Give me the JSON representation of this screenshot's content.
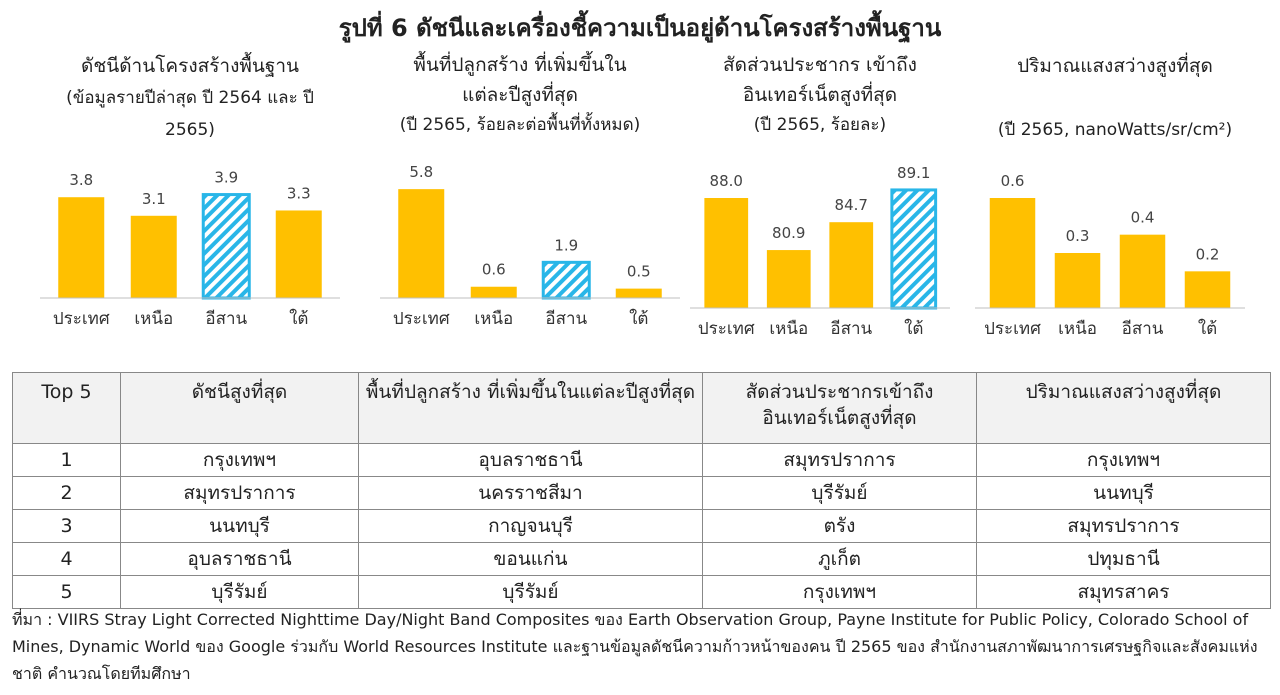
{
  "title": "รูปที่ 6 ดัชนีและเครื่องชี้ความเป็นอยู่ด้านโครงสร้างพื้นฐาน",
  "colors": {
    "solid": "#FFC000",
    "hatch": "#29B6E8",
    "axis": "#bfbfbf"
  },
  "chart_data": [
    {
      "type": "bar",
      "title": "ดัชนีด้านโครงสร้างพื้นฐาน",
      "subtitle": "(ข้อมูลรายปีล่าสุด ปี 2564 และ ปี 2565)",
      "categories": [
        "ประเทศ",
        "เหนือ",
        "อีสาน",
        "ใต้"
      ],
      "values": [
        3.8,
        3.1,
        3.9,
        3.3
      ],
      "labels": [
        "3.8",
        "3.1",
        "3.9",
        "3.3"
      ],
      "highlight_index": 2,
      "ylim": [
        0,
        4.6
      ]
    },
    {
      "type": "bar",
      "title": "พื้นที่ปลูกสร้าง ที่เพิ่มขึ้นในแต่ละปีสูงที่สุด",
      "subtitle": "(ปี 2565, ร้อยละต่อพื้นที่ทั้งหมด)",
      "categories": [
        "ประเทศ",
        "เหนือ",
        "อีสาน",
        "ใต้"
      ],
      "values": [
        5.8,
        0.6,
        1.9,
        0.5
      ],
      "labels": [
        "5.8",
        "0.6",
        "1.9",
        "0.5"
      ],
      "highlight_index": 2,
      "ylim": [
        0,
        6.5
      ]
    },
    {
      "type": "bar",
      "title": "สัดส่วนประชากร เข้าถึงอินเทอร์เน็ตสูงที่สุด",
      "subtitle": "(ปี 2565, ร้อยละ)",
      "categories": [
        "ประเทศ",
        "เหนือ",
        "อีสาน",
        "ใต้"
      ],
      "values": [
        88.0,
        80.9,
        84.7,
        89.1
      ],
      "labels": [
        "88.0",
        "80.9",
        "84.7",
        "89.1"
      ],
      "highlight_index": 3,
      "ylim": [
        73,
        91
      ]
    },
    {
      "type": "bar",
      "title": "ปริมาณแสงสว่างสูงที่สุด",
      "subtitle": "(ปี 2565, nanoWatts/sr/cm²)",
      "categories": [
        "ประเทศ",
        "เหนือ",
        "อีสาน",
        "ใต้"
      ],
      "values": [
        0.6,
        0.3,
        0.4,
        0.2
      ],
      "labels": [
        "0.6",
        "0.3",
        "0.4",
        "0.2"
      ],
      "highlight_index": -1,
      "ylim": [
        0,
        0.72
      ]
    }
  ],
  "table": {
    "headers": [
      "Top 5",
      "ดัชนีสูงที่สุด",
      "พื้นที่ปลูกสร้าง ที่เพิ่มขึ้นในแต่ละปีสูงที่สุด",
      "สัดส่วนประชากรเข้าถึง อินเทอร์เน็ตสูงที่สุด",
      "ปริมาณแสงสว่างสูงที่สุด"
    ],
    "rows": [
      [
        "1",
        "กรุงเทพฯ",
        "อุบลราชธานี",
        "สมุทรปราการ",
        "กรุงเทพฯ"
      ],
      [
        "2",
        "สมุทรปราการ",
        "นครราชสีมา",
        "บุรีรัมย์",
        "นนทบุรี"
      ],
      [
        "3",
        "นนทบุรี",
        "กาญจนบุรี",
        "ตรัง",
        "สมุทรปราการ"
      ],
      [
        "4",
        "อุบลราชธานี",
        "ขอนแก่น",
        "ภูเก็ต",
        "ปทุมธานี"
      ],
      [
        "5",
        "บุรีรัมย์",
        "บุรีรัมย์",
        "กรุงเทพฯ",
        "สมุทรสาคร"
      ]
    ]
  },
  "source": "ที่มา : VIIRS Stray Light Corrected Nighttime Day/Night Band Composites ของ Earth Observation Group, Payne Institute for Public Policy, Colorado School of Mines, Dynamic World ของ Google ร่วมกับ World Resources Institute และฐานข้อมูลดัชนีความก้าวหน้าของคน ปี 2565 ของ สำนักงานสภาพัฒนาการเศรษฐกิจและสังคมแห่งชาติ คำนวณโดยทีมศึกษา"
}
